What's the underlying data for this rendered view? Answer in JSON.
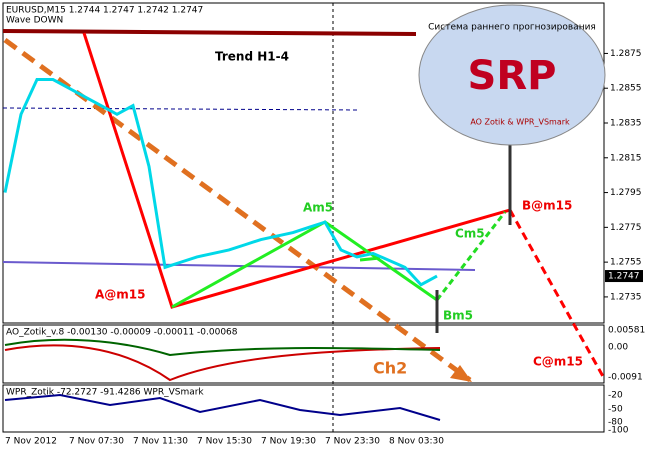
{
  "chart_data": {
    "type": "line",
    "title": "EURUSD,M15  1.2744 1.2747 1.2742 1.2747",
    "subtitle": "Wave DOWN",
    "categories": [
      "7 Nov 2012",
      null,
      null,
      null,
      "7 Nov 07:30",
      null,
      null,
      null,
      "7 Nov 11:30",
      null,
      null,
      null,
      "7 Nov 15:30",
      null,
      null,
      null,
      "7 Nov 19:30",
      null,
      null,
      null,
      "7 Nov 23:30",
      null,
      null,
      null,
      "8 Nov 03:30",
      null,
      null,
      null,
      null,
      null,
      null,
      null,
      null,
      null,
      null,
      null,
      null
    ],
    "series": [
      {
        "name": "EURUSD",
        "color": "#00d8e8",
        "values": [
          1.2795,
          1.284,
          1.286,
          1.286,
          1.2855,
          1.285,
          1.2845,
          1.284,
          1.2845,
          1.281,
          1.2752,
          1.2755,
          1.2758,
          1.276,
          1.2762,
          1.2765,
          1.2768,
          1.277,
          1.2772,
          1.2775,
          1.2778,
          1.2762,
          1.2758,
          1.276,
          1.2756,
          1.2752,
          1.2742,
          1.2747,
          null,
          null,
          null,
          null,
          null,
          null,
          null,
          null,
          null
        ]
      }
    ],
    "ylim": [
      1.272,
      1.2904
    ],
    "yticks": [
      1.2875,
      1.2855,
      1.2835,
      1.2815,
      1.2795,
      1.2775,
      1.2755,
      1.2735
    ],
    "current_price": 1.2747,
    "grid": false
  },
  "annotations": [
    "Trend H1-4",
    "Am5",
    "A@m15",
    "Bm5",
    "Cm5",
    "B@m15",
    "C@m15",
    "Ch2"
  ],
  "logo": {
    "title": "SRP",
    "arc_text": "Система раннего прогнозирования",
    "footer": "AO Zotik & WPR_VSmark"
  },
  "panels": [
    {
      "label": "AO_Zotik_v.8 -0.00130 -0.00009 -0.00011 -0.00068",
      "ticks": [
        "0.00581",
        "0.00",
        "-0.0091"
      ]
    },
    {
      "label": "WPR_Zotik -72.2727 -91.4286  WPR_VSmark",
      "ticks": [
        "-20",
        "-50",
        "-80",
        "-100"
      ]
    }
  ]
}
